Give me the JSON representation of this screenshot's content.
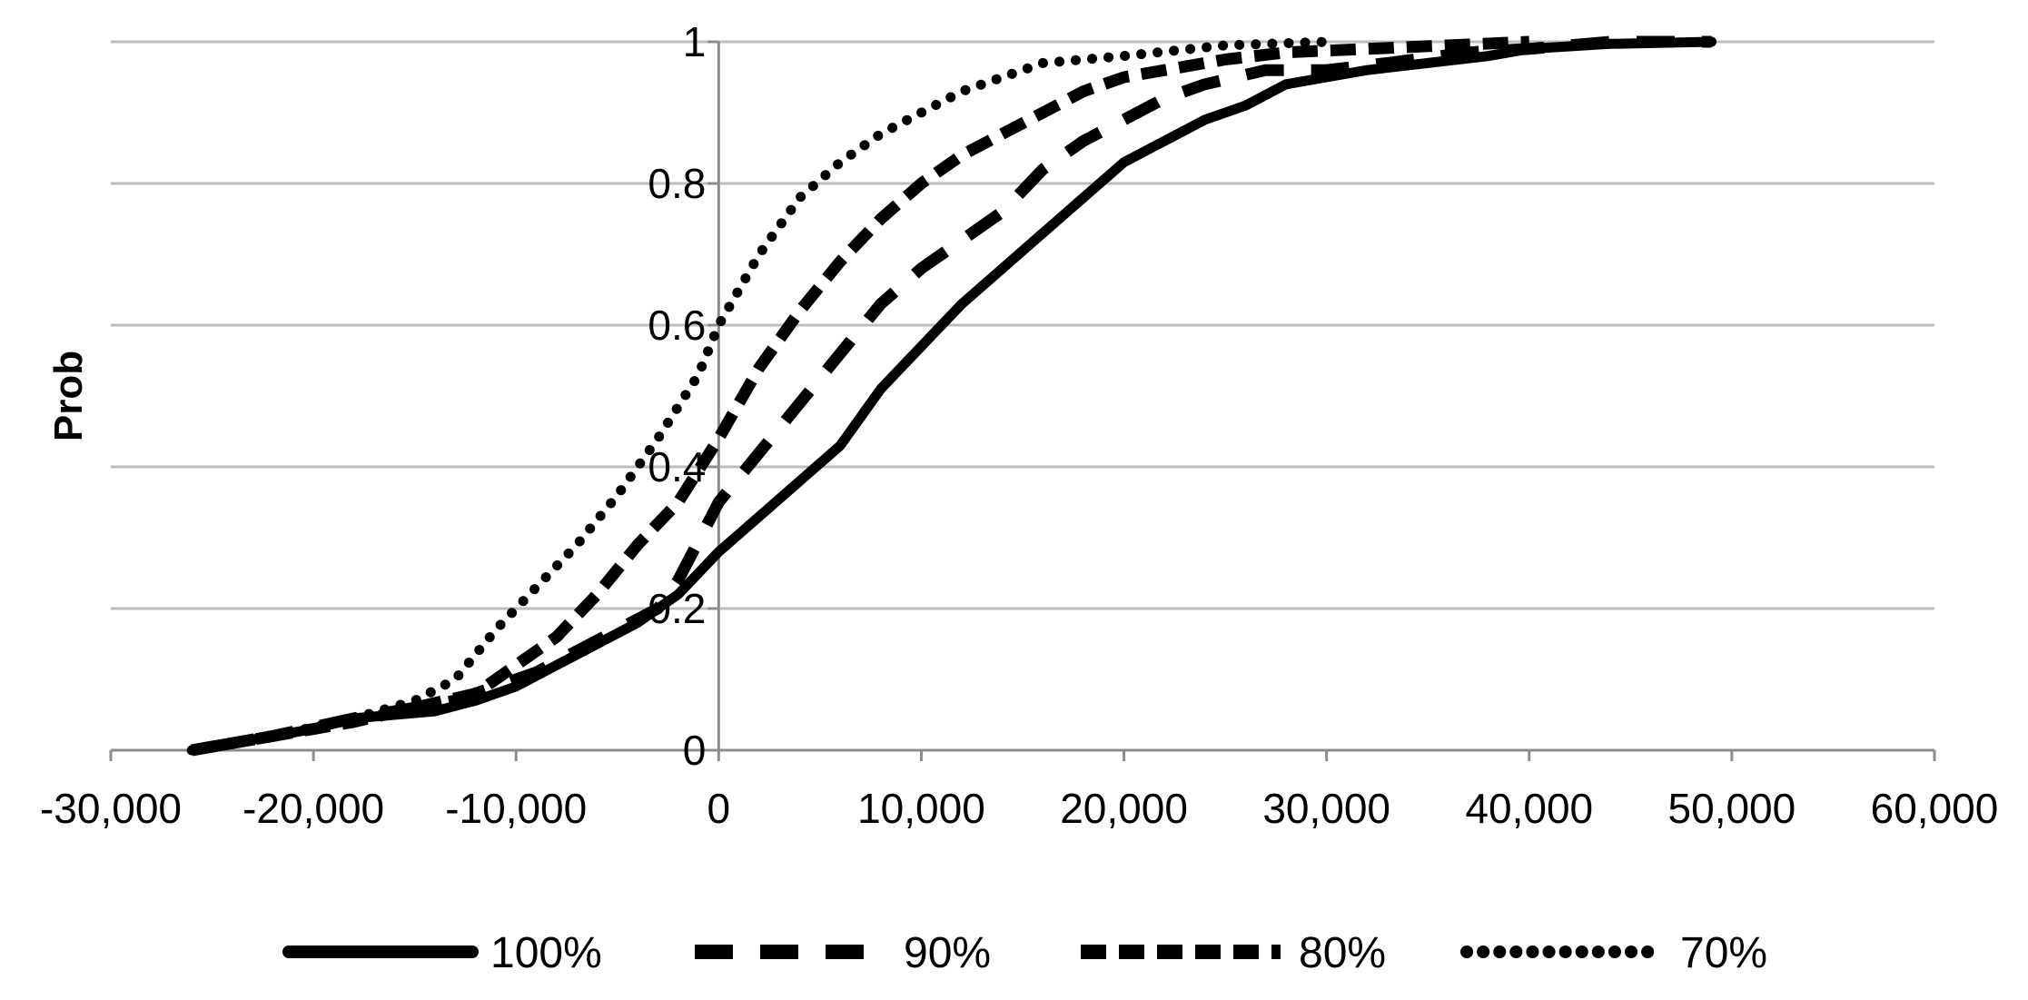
{
  "chart_data": {
    "type": "line",
    "title": "",
    "xlabel": "",
    "ylabel": "Prob",
    "xlim": [
      -30000,
      60000
    ],
    "ylim": [
      0,
      1
    ],
    "x_ticks": [
      -30000,
      -20000,
      -10000,
      0,
      10000,
      20000,
      30000,
      40000,
      50000,
      60000
    ],
    "x_tick_labels": [
      "-30,000",
      "-20,000",
      "-10,000",
      "0",
      "10,000",
      "20,000",
      "30,000",
      "40,000",
      "50,000",
      "60,000"
    ],
    "y_ticks": [
      0,
      0.2,
      0.4,
      0.6,
      0.8,
      1
    ],
    "y_tick_labels": [
      "0",
      "0.2",
      "0.4",
      "0.6",
      "0.8",
      "1"
    ],
    "grid": true,
    "legend_position": "bottom",
    "series": [
      {
        "name": "100%",
        "style": "solid",
        "points": [
          [
            -26000,
            0
          ],
          [
            -24000,
            0.01
          ],
          [
            -22000,
            0.02
          ],
          [
            -20000,
            0.03
          ],
          [
            -18000,
            0.045
          ],
          [
            -16000,
            0.05
          ],
          [
            -14000,
            0.055
          ],
          [
            -12000,
            0.07
          ],
          [
            -10000,
            0.09
          ],
          [
            -8000,
            0.12
          ],
          [
            -6000,
            0.15
          ],
          [
            -4000,
            0.18
          ],
          [
            -3000,
            0.2
          ],
          [
            -2000,
            0.22
          ],
          [
            -1000,
            0.25
          ],
          [
            0,
            0.28
          ],
          [
            2000,
            0.33
          ],
          [
            4000,
            0.38
          ],
          [
            6000,
            0.43
          ],
          [
            7000,
            0.47
          ],
          [
            8000,
            0.51
          ],
          [
            10000,
            0.57
          ],
          [
            12000,
            0.63
          ],
          [
            14000,
            0.68
          ],
          [
            16000,
            0.73
          ],
          [
            18000,
            0.78
          ],
          [
            20000,
            0.83
          ],
          [
            22000,
            0.86
          ],
          [
            24000,
            0.89
          ],
          [
            26000,
            0.91
          ],
          [
            28000,
            0.94
          ],
          [
            30000,
            0.95
          ],
          [
            32000,
            0.96
          ],
          [
            35000,
            0.97
          ],
          [
            38000,
            0.98
          ],
          [
            40000,
            0.99
          ],
          [
            44000,
            0.997
          ],
          [
            49000,
            1.0
          ]
        ]
      },
      {
        "name": "90%",
        "style": "dash-long",
        "points": [
          [
            -26000,
            0
          ],
          [
            -22000,
            0.02
          ],
          [
            -18000,
            0.045
          ],
          [
            -15000,
            0.06
          ],
          [
            -13000,
            0.07
          ],
          [
            -11000,
            0.09
          ],
          [
            -9000,
            0.11
          ],
          [
            -7000,
            0.14
          ],
          [
            -5000,
            0.17
          ],
          [
            -3000,
            0.2
          ],
          [
            -2000,
            0.24
          ],
          [
            0,
            0.35
          ],
          [
            2000,
            0.42
          ],
          [
            4000,
            0.49
          ],
          [
            6000,
            0.56
          ],
          [
            8000,
            0.63
          ],
          [
            10000,
            0.68
          ],
          [
            12000,
            0.72
          ],
          [
            14000,
            0.76
          ],
          [
            16000,
            0.82
          ],
          [
            18000,
            0.86
          ],
          [
            20000,
            0.89
          ],
          [
            22000,
            0.92
          ],
          [
            24000,
            0.94
          ],
          [
            27000,
            0.96
          ],
          [
            30000,
            0.96
          ],
          [
            33000,
            0.97
          ],
          [
            37000,
            0.985
          ],
          [
            40000,
            0.99
          ],
          [
            44000,
            1.0
          ],
          [
            49000,
            1.0
          ]
        ]
      },
      {
        "name": "80%",
        "style": "dash-short",
        "points": [
          [
            -26000,
            0
          ],
          [
            -22000,
            0.02
          ],
          [
            -18000,
            0.04
          ],
          [
            -15000,
            0.06
          ],
          [
            -12000,
            0.08
          ],
          [
            -10000,
            0.12
          ],
          [
            -8000,
            0.16
          ],
          [
            -6000,
            0.22
          ],
          [
            -4000,
            0.29
          ],
          [
            -2000,
            0.35
          ],
          [
            0,
            0.44
          ],
          [
            2000,
            0.54
          ],
          [
            4000,
            0.62
          ],
          [
            6000,
            0.69
          ],
          [
            8000,
            0.75
          ],
          [
            10000,
            0.8
          ],
          [
            12000,
            0.84
          ],
          [
            14000,
            0.87
          ],
          [
            16000,
            0.9
          ],
          [
            18000,
            0.93
          ],
          [
            20000,
            0.95
          ],
          [
            22000,
            0.96
          ],
          [
            25000,
            0.975
          ],
          [
            28000,
            0.985
          ],
          [
            32000,
            0.99
          ],
          [
            40000,
            1.0
          ]
        ]
      },
      {
        "name": "70%",
        "style": "dotted",
        "points": [
          [
            -26000,
            0
          ],
          [
            -22000,
            0.02
          ],
          [
            -18000,
            0.045
          ],
          [
            -15000,
            0.07
          ],
          [
            -13000,
            0.1
          ],
          [
            -11000,
            0.17
          ],
          [
            -9000,
            0.23
          ],
          [
            -7000,
            0.29
          ],
          [
            -5000,
            0.36
          ],
          [
            -3000,
            0.44
          ],
          [
            -1000,
            0.53
          ],
          [
            0,
            0.6
          ],
          [
            2000,
            0.7
          ],
          [
            4000,
            0.78
          ],
          [
            6000,
            0.83
          ],
          [
            8000,
            0.87
          ],
          [
            10000,
            0.9
          ],
          [
            12000,
            0.93
          ],
          [
            14000,
            0.95
          ],
          [
            16000,
            0.97
          ],
          [
            20000,
            0.98
          ],
          [
            25000,
            0.995
          ],
          [
            30000,
            1.0
          ]
        ]
      }
    ]
  }
}
